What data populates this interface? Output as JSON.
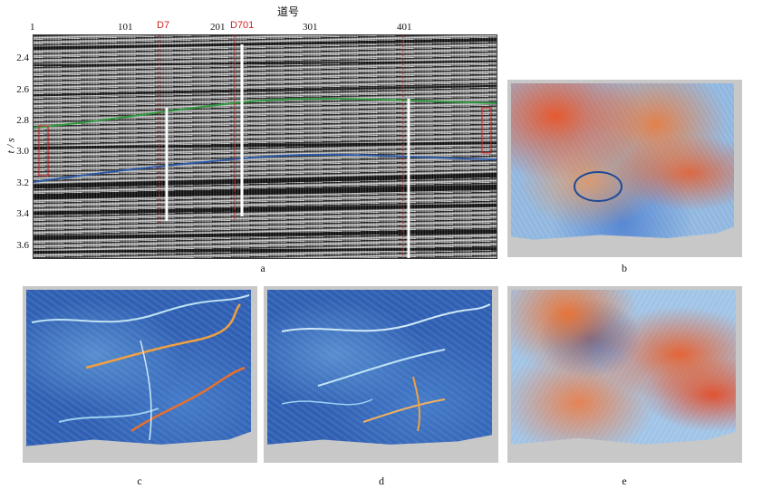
{
  "panel_a": {
    "x_axis_title": "道号",
    "trace_ticks": [
      "1",
      "101",
      "201",
      "301",
      "401"
    ],
    "wells": [
      "D7",
      "D701"
    ],
    "y_axis_label": "t / s",
    "y_ticks": [
      "2.4",
      "2.6",
      "2.8",
      "3.0",
      "3.2",
      "3.4",
      "3.6"
    ],
    "caption": "a"
  },
  "panel_b": {
    "caption": "b"
  },
  "panel_c": {
    "caption": "c"
  },
  "panel_d": {
    "caption": "d"
  },
  "panel_e": {
    "caption": "e"
  },
  "colors": {
    "well_marker": "#d21f1f",
    "horizon_upper": "#2f9a3f",
    "horizon_lower": "#2d5aa8",
    "map_background": "#c8c8c8"
  }
}
